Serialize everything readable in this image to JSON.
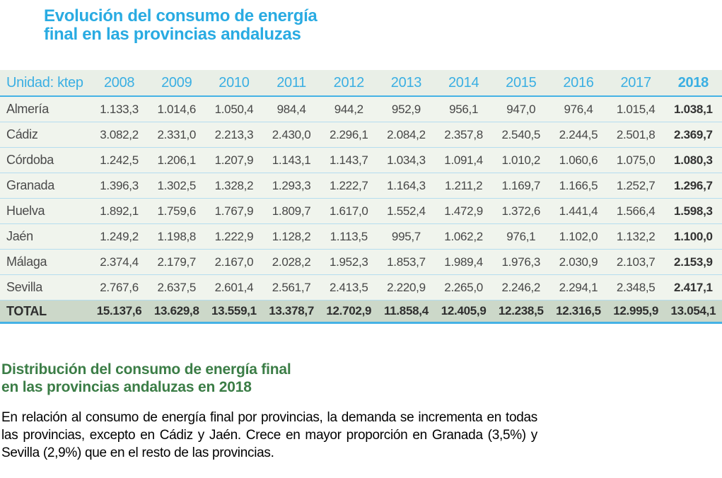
{
  "header": {
    "title_line1": "Evolución del consumo de energía",
    "title_line2": "final en las provincias andaluzas"
  },
  "table": {
    "unit_label": "Unidad: ktep",
    "years": [
      "2008",
      "2009",
      "2010",
      "2011",
      "2012",
      "2013",
      "2014",
      "2015",
      "2016",
      "2017",
      "2018"
    ],
    "rows": [
      {
        "province": "Almería",
        "values": [
          "1.133,3",
          "1.014,6",
          "1.050,4",
          "984,4",
          "944,2",
          "952,9",
          "956,1",
          "947,0",
          "976,4",
          "1.015,4",
          "1.038,1"
        ]
      },
      {
        "province": "Cádiz",
        "values": [
          "3.082,2",
          "2.331,0",
          "2.213,3",
          "2.430,0",
          "2.296,1",
          "2.084,2",
          "2.357,8",
          "2.540,5",
          "2.244,5",
          "2.501,8",
          "2.369,7"
        ]
      },
      {
        "province": "Córdoba",
        "values": [
          "1.242,5",
          "1.206,1",
          "1.207,9",
          "1.143,1",
          "1.143,7",
          "1.034,3",
          "1.091,4",
          "1.010,2",
          "1.060,6",
          "1.075,0",
          "1.080,3"
        ]
      },
      {
        "province": "Granada",
        "values": [
          "1.396,3",
          "1.302,5",
          "1.328,2",
          "1.293,3",
          "1.222,7",
          "1.164,3",
          "1.211,2",
          "1.169,7",
          "1.166,5",
          "1.252,7",
          "1.296,7"
        ]
      },
      {
        "province": "Huelva",
        "values": [
          "1.892,1",
          "1.759,6",
          "1.767,9",
          "1.809,7",
          "1.617,0",
          "1.552,4",
          "1.472,9",
          "1.372,6",
          "1.441,4",
          "1.566,4",
          "1.598,3"
        ]
      },
      {
        "province": "Jaén",
        "values": [
          "1.249,2",
          "1.198,8",
          "1.222,9",
          "1.128,2",
          "1.113,5",
          "995,7",
          "1.062,2",
          "976,1",
          "1.102,0",
          "1.132,2",
          "1.100,0"
        ]
      },
      {
        "province": "Málaga",
        "values": [
          "2.374,4",
          "2.179,7",
          "2.167,0",
          "2.028,2",
          "1.952,3",
          "1.853,7",
          "1.989,4",
          "1.976,3",
          "2.030,9",
          "2.103,7",
          "2.153,9"
        ]
      },
      {
        "province": "Sevilla",
        "values": [
          "2.767,6",
          "2.637,5",
          "2.601,4",
          "2.561,7",
          "2.413,5",
          "2.220,9",
          "2.265,0",
          "2.246,2",
          "2.294,1",
          "2.348,5",
          "2.417,1"
        ]
      }
    ],
    "total_row": {
      "label": "TOTAL",
      "values": [
        "15.137,6",
        "13.629,8",
        "13.559,1",
        "13.378,7",
        "12.702,9",
        "11.858,4",
        "12.405,9",
        "12.238,5",
        "12.316,5",
        "12.995,9",
        "13.054,1"
      ]
    }
  },
  "section": {
    "heading_line1": "Distribución del consumo de energía final",
    "heading_line2": "en las provincias andaluzas en 2018",
    "body": "En relación al consumo de energía final por provincias, la demanda se incrementa en todas las provincias, excepto en Cádiz y Jaén. Crece en mayor proporción en Granada (3,5%) y Sevilla (2,9%) que en el resto de las provincias."
  },
  "colors": {
    "accent_cyan": "#29abe2",
    "heading_green": "#3b7d46",
    "table_header_bg": "#e9efe7",
    "table_row_bg": "#f0f4ed",
    "table_total_bg": "#ccd8c9",
    "row_divider": "#b5ddef",
    "strong_divider": "#45b2e5",
    "cell_text": "#474747"
  }
}
